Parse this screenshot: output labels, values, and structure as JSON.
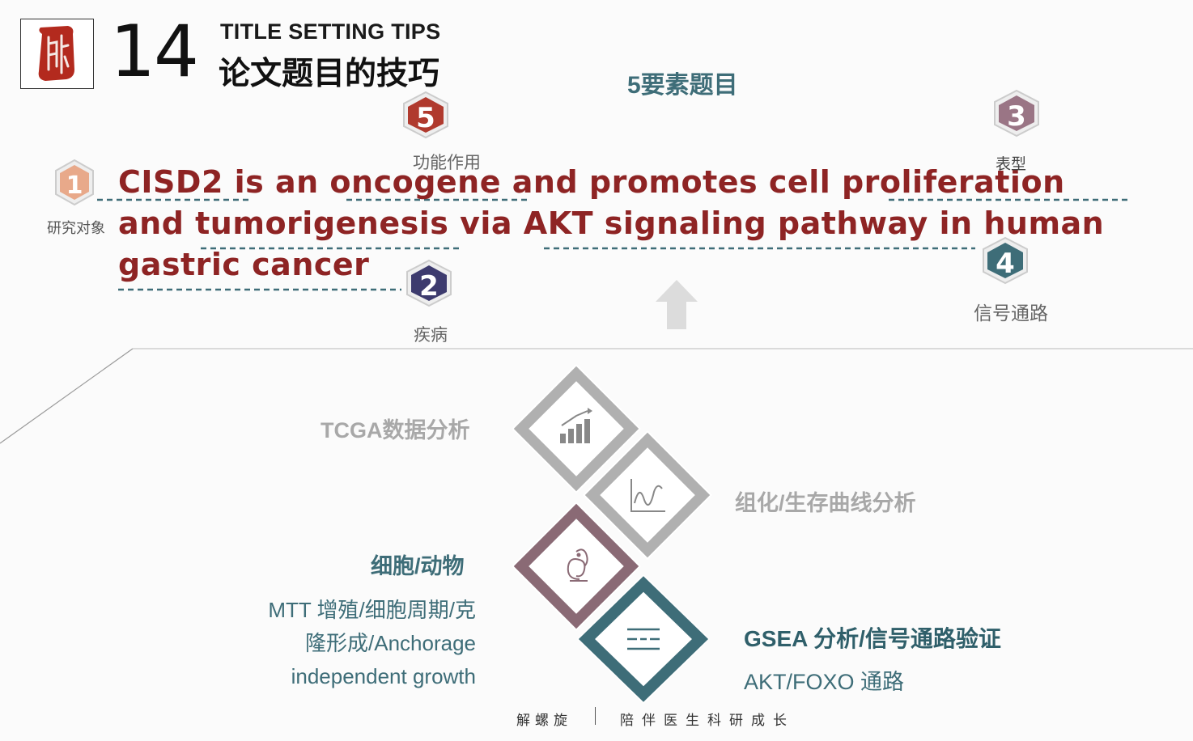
{
  "header": {
    "slide_number": "14",
    "title_en": "TITLE SETTING TIPS",
    "title_cn": "论文题目的技巧",
    "logo_glyph": "解"
  },
  "subtitle": "5要素题目",
  "paper_title": {
    "line1": [
      "CISD2",
      " is an ",
      "oncogene",
      " and promotes cell ",
      "proliferation"
    ],
    "line2": [
      "and ",
      "tumorigenesis",
      " via ",
      "AKT signaling pathway",
      " in human"
    ],
    "line3": "gastric cancer"
  },
  "elements": [
    {
      "number": "1",
      "label": "研究对象",
      "color": "#e8a98a"
    },
    {
      "number": "2",
      "label": "疾病",
      "color": "#3d3b6e"
    },
    {
      "number": "3",
      "label": "表型",
      "color": "#9a7585"
    },
    {
      "number": "4",
      "label": "信号通路",
      "color": "#3e6d78"
    },
    {
      "number": "5",
      "label": "功能作用",
      "color": "#b03a2e"
    }
  ],
  "methods": {
    "tcga": "TCGA数据分析",
    "ihc": "组化/生存曲线分析",
    "cell_title": "细胞/动物",
    "cell_desc": [
      "MTT 增殖/细胞周期/克",
      "隆形成/Anchorage",
      "independent growth"
    ],
    "gsea_title": "GSEA 分析/信号通路验证",
    "gsea_desc": "AKT/FOXO 通路"
  },
  "icons": [
    "bar-chart-icon",
    "line-chart-icon",
    "squirrel-icon",
    "list-icon",
    "up-arrow-icon"
  ],
  "footer": {
    "left": "解螺旋",
    "right": "陪伴医生科研成长"
  },
  "colors": {
    "title_red": "#8e2424",
    "teal": "#3e6d78",
    "grey": "#a8a8a8",
    "mauve": "#8a6a75"
  }
}
